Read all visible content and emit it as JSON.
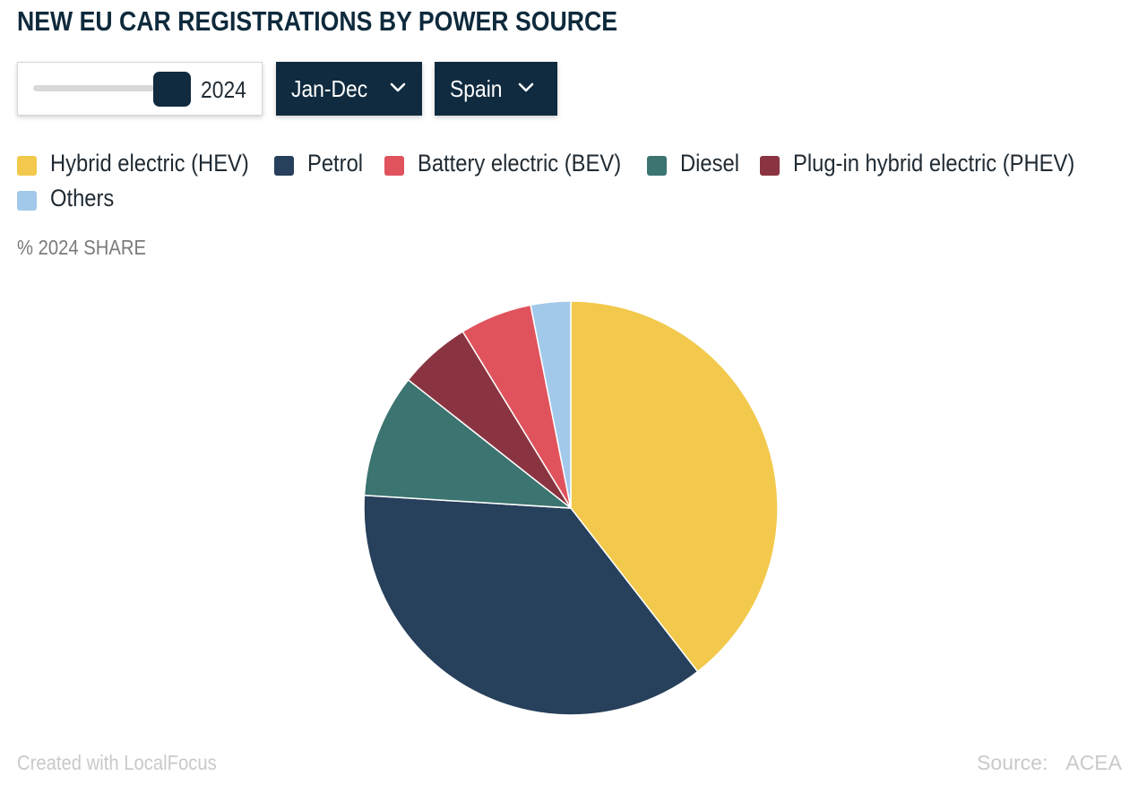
{
  "title": "NEW EU CAR REGISTRATIONS BY POWER SOURCE",
  "controls": {
    "year_slider": {
      "value": "2024"
    },
    "period_dropdown": {
      "label": "Jan-Dec"
    },
    "country_dropdown": {
      "label": "Spain"
    }
  },
  "subtitle": "% 2024 SHARE",
  "colors": {
    "hev": "#f2c94c",
    "petrol": "#27405b",
    "bev": "#e0535d",
    "diesel": "#3b7470",
    "phev": "#8b3441",
    "others": "#a3c9ea",
    "dark": "#102b3f"
  },
  "chart_data": {
    "type": "pie",
    "title": "NEW EU CAR REGISTRATIONS BY POWER SOURCE",
    "subtitle": "% 2024 SHARE",
    "legend_position": "top-left",
    "slices": [
      {
        "name": "Hybrid electric (HEV)",
        "value": 39.3,
        "color": "#f2c94c"
      },
      {
        "name": "Petrol",
        "value": 36.3,
        "color": "#27405b"
      },
      {
        "name": "Diesel",
        "value": 9.6,
        "color": "#3b7470"
      },
      {
        "name": "Plug-in hybrid electric (PHEV)",
        "value": 5.6,
        "color": "#8b3441"
      },
      {
        "name": "Battery electric (BEV)",
        "value": 5.6,
        "color": "#e0535d"
      },
      {
        "name": "Others",
        "value": 3.1,
        "color": "#a3c9ea"
      }
    ]
  },
  "legend": [
    {
      "label": "Hybrid electric (HEV)",
      "color": "#f2c94c"
    },
    {
      "label": "Petrol",
      "color": "#27405b"
    },
    {
      "label": "Battery electric (BEV)",
      "color": "#e0535d"
    },
    {
      "label": "Diesel",
      "color": "#3b7470"
    },
    {
      "label": "Plug-in hybrid electric (PHEV)",
      "color": "#8b3441"
    },
    {
      "label": "Others",
      "color": "#a3c9ea"
    }
  ],
  "footer": {
    "credit": "Created with LocalFocus",
    "source_label": "Source:",
    "source_value": "ACEA"
  }
}
